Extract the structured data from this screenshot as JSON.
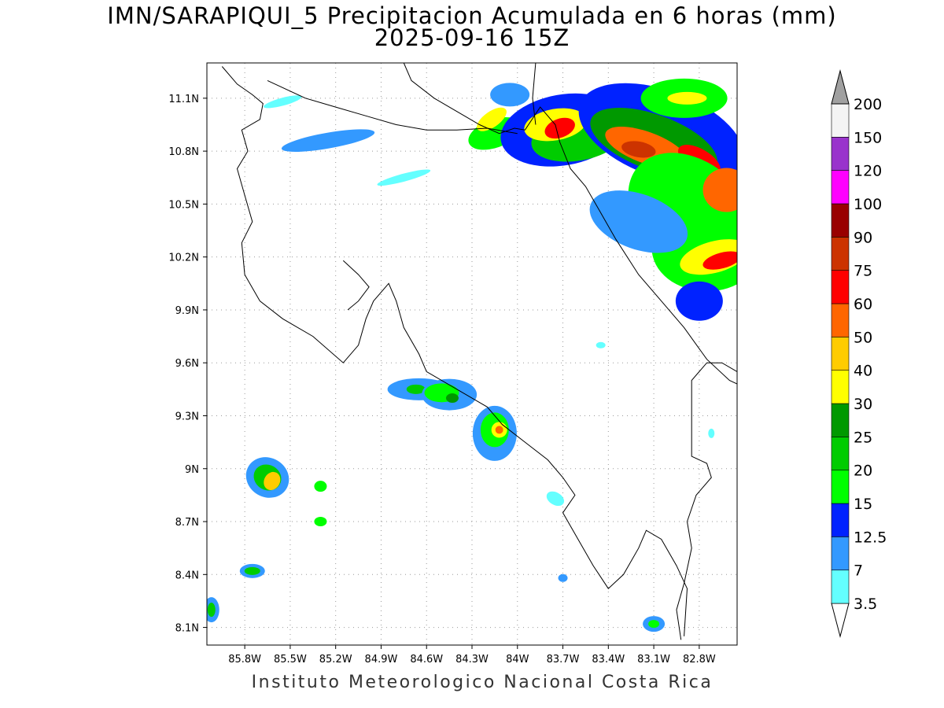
{
  "title_line1": "IMN/SARAPIQUI_5 Precipitacion Acumulada en 6 horas (mm)",
  "title_line2": "2025-09-16 15Z",
  "footer": "Instituto Meteorologico Nacional Costa Rica",
  "map": {
    "lon_range": [
      -86.05,
      -82.55
    ],
    "lat_range": [
      8.0,
      11.3
    ],
    "lon_ticks": [
      {
        "v": -85.8,
        "label": "85.8W"
      },
      {
        "v": -85.5,
        "label": "85.5W"
      },
      {
        "v": -85.2,
        "label": "85.2W"
      },
      {
        "v": -84.9,
        "label": "84.9W"
      },
      {
        "v": -84.6,
        "label": "84.6W"
      },
      {
        "v": -84.3,
        "label": "84.3W"
      },
      {
        "v": -84.0,
        "label": "84W"
      },
      {
        "v": -83.7,
        "label": "83.7W"
      },
      {
        "v": -83.4,
        "label": "83.4W"
      },
      {
        "v": -83.1,
        "label": "83.1W"
      },
      {
        "v": -82.8,
        "label": "82.8W"
      }
    ],
    "lat_ticks": [
      {
        "v": 8.1,
        "label": "8.1N"
      },
      {
        "v": 8.4,
        "label": "8.4N"
      },
      {
        "v": 8.7,
        "label": "8.7N"
      },
      {
        "v": 9.0,
        "label": "9N"
      },
      {
        "v": 9.3,
        "label": "9.3N"
      },
      {
        "v": 9.6,
        "label": "9.6N"
      },
      {
        "v": 9.9,
        "label": "9.9N"
      },
      {
        "v": 10.2,
        "label": "10.2N"
      },
      {
        "v": 10.5,
        "label": "10.5N"
      },
      {
        "v": 10.8,
        "label": "10.8N"
      },
      {
        "v": 11.1,
        "label": "11.1N"
      }
    ],
    "grid": true,
    "coastline": [
      [
        [
          -85.95,
          11.28
        ],
        [
          -85.85,
          11.18
        ],
        [
          -85.75,
          11.12
        ],
        [
          -85.68,
          11.07
        ],
        [
          -85.7,
          10.98
        ],
        [
          -85.82,
          10.92
        ],
        [
          -85.78,
          10.8
        ],
        [
          -85.85,
          10.7
        ],
        [
          -85.8,
          10.55
        ],
        [
          -85.75,
          10.4
        ],
        [
          -85.82,
          10.28
        ],
        [
          -85.8,
          10.1
        ],
        [
          -85.7,
          9.95
        ],
        [
          -85.55,
          9.85
        ],
        [
          -85.35,
          9.75
        ],
        [
          -85.15,
          9.6
        ],
        [
          -85.05,
          9.7
        ],
        [
          -85.0,
          9.85
        ],
        [
          -84.95,
          9.95
        ],
        [
          -84.85,
          10.05
        ],
        [
          -84.8,
          9.95
        ],
        [
          -84.75,
          9.8
        ],
        [
          -84.65,
          9.65
        ],
        [
          -84.6,
          9.55
        ],
        [
          -84.4,
          9.45
        ],
        [
          -84.2,
          9.35
        ],
        [
          -84.1,
          9.25
        ],
        [
          -83.95,
          9.15
        ],
        [
          -83.8,
          9.05
        ],
        [
          -83.7,
          8.95
        ],
        [
          -83.62,
          8.85
        ],
        [
          -83.7,
          8.75
        ],
        [
          -83.6,
          8.6
        ],
        [
          -83.5,
          8.45
        ],
        [
          -83.4,
          8.32
        ],
        [
          -83.3,
          8.4
        ],
        [
          -83.2,
          8.55
        ],
        [
          -83.15,
          8.65
        ],
        [
          -83.05,
          8.6
        ],
        [
          -82.95,
          8.45
        ],
        [
          -82.88,
          8.32
        ],
        [
          -82.9,
          8.05
        ]
      ],
      [
        [
          -85.15,
          10.18
        ],
        [
          -85.05,
          10.1
        ],
        [
          -84.98,
          10.03
        ],
        [
          -85.05,
          9.95
        ],
        [
          -85.12,
          9.9
        ]
      ],
      [
        [
          -84.75,
          11.3
        ],
        [
          -84.7,
          11.2
        ],
        [
          -84.55,
          11.1
        ],
        [
          -84.45,
          11.05
        ],
        [
          -84.35,
          11.0
        ],
        [
          -84.25,
          10.95
        ],
        [
          -84.12,
          10.9
        ],
        [
          -84.02,
          10.93
        ],
        [
          -83.95,
          10.92
        ],
        [
          -83.85,
          11.05
        ],
        [
          -83.75,
          10.95
        ],
        [
          -83.72,
          10.85
        ],
        [
          -83.65,
          10.7
        ],
        [
          -83.55,
          10.6
        ],
        [
          -83.45,
          10.45
        ],
        [
          -83.35,
          10.3
        ],
        [
          -83.2,
          10.1
        ],
        [
          -83.05,
          9.95
        ],
        [
          -82.9,
          9.8
        ],
        [
          -82.75,
          9.62
        ],
        [
          -82.6,
          9.5
        ],
        [
          -82.55,
          9.48
        ]
      ]
    ],
    "borders": [
      [
        [
          -85.65,
          11.2
        ],
        [
          -85.4,
          11.1
        ],
        [
          -85.2,
          11.05
        ],
        [
          -85.0,
          11.0
        ],
        [
          -84.8,
          10.95
        ],
        [
          -84.6,
          10.92
        ],
        [
          -84.4,
          10.92
        ],
        [
          -84.2,
          10.93
        ],
        [
          -84.0,
          10.9
        ]
      ],
      [
        [
          -83.88,
          11.3
        ],
        [
          -83.9,
          11.1
        ],
        [
          -83.88,
          10.95
        ]
      ],
      [
        [
          -82.55,
          9.55
        ],
        [
          -82.65,
          9.6
        ],
        [
          -82.75,
          9.6
        ],
        [
          -82.85,
          9.5
        ],
        [
          -82.85,
          9.3
        ],
        [
          -82.85,
          9.07
        ],
        [
          -82.75,
          9.03
        ],
        [
          -82.72,
          8.95
        ],
        [
          -82.82,
          8.85
        ],
        [
          -82.88,
          8.7
        ],
        [
          -82.85,
          8.55
        ],
        [
          -82.9,
          8.35
        ],
        [
          -82.95,
          8.2
        ],
        [
          -82.92,
          8.03
        ]
      ]
    ],
    "precip_cells": [
      {
        "lon": -84.15,
        "lat": 10.9,
        "rx": 35,
        "ry": 18,
        "rot": -20,
        "level": 3
      },
      {
        "lon": -84.17,
        "lat": 10.98,
        "rx": 22,
        "ry": 10,
        "rot": -35,
        "level": 6
      },
      {
        "lon": -84.05,
        "lat": 11.12,
        "rx": 25,
        "ry": 15,
        "rot": 0,
        "level": 1
      },
      {
        "lon": -83.7,
        "lat": 10.92,
        "rx": 80,
        "ry": 45,
        "rot": -10,
        "level": 2
      },
      {
        "lon": -83.6,
        "lat": 10.88,
        "rx": 60,
        "ry": 30,
        "rot": -10,
        "level": 4
      },
      {
        "lon": -83.75,
        "lat": 10.95,
        "rx": 40,
        "ry": 20,
        "rot": -10,
        "level": 6
      },
      {
        "lon": -83.72,
        "lat": 10.93,
        "rx": 20,
        "ry": 12,
        "rot": -20,
        "level": 9
      },
      {
        "lon": -83.05,
        "lat": 10.9,
        "rx": 110,
        "ry": 55,
        "rot": 20,
        "level": 2
      },
      {
        "lon": -83.1,
        "lat": 10.85,
        "rx": 85,
        "ry": 35,
        "rot": 20,
        "level": 5
      },
      {
        "lon": -83.15,
        "lat": 10.82,
        "rx": 55,
        "ry": 20,
        "rot": 20,
        "level": 8
      },
      {
        "lon": -83.2,
        "lat": 10.81,
        "rx": 22,
        "ry": 10,
        "rot": 10,
        "level": 10
      },
      {
        "lon": -82.8,
        "lat": 10.75,
        "rx": 30,
        "ry": 14,
        "rot": 30,
        "level": 9
      },
      {
        "lon": -82.9,
        "lat": 11.1,
        "rx": 55,
        "ry": 25,
        "rot": 0,
        "level": 3
      },
      {
        "lon": -82.88,
        "lat": 11.1,
        "rx": 25,
        "ry": 8,
        "rot": 0,
        "level": 6
      },
      {
        "lon": -82.85,
        "lat": 10.45,
        "rx": 90,
        "ry": 65,
        "rot": 40,
        "level": 3
      },
      {
        "lon": -82.75,
        "lat": 10.25,
        "rx": 70,
        "ry": 55,
        "rot": 0,
        "level": 3
      },
      {
        "lon": -82.7,
        "lat": 10.2,
        "rx": 45,
        "ry": 20,
        "rot": -15,
        "level": 6
      },
      {
        "lon": -82.65,
        "lat": 10.18,
        "rx": 25,
        "ry": 10,
        "rot": -15,
        "level": 9
      },
      {
        "lon": -82.62,
        "lat": 10.58,
        "rx": 30,
        "ry": 28,
        "rot": 0,
        "level": 8
      },
      {
        "lon": -83.2,
        "lat": 10.4,
        "rx": 65,
        "ry": 35,
        "rot": 20,
        "level": 1
      },
      {
        "lon": -82.8,
        "lat": 9.95,
        "rx": 30,
        "ry": 25,
        "rot": 0,
        "level": 2
      },
      {
        "lon": -85.25,
        "lat": 10.86,
        "rx": 60,
        "ry": 10,
        "rot": -10,
        "level": 1
      },
      {
        "lon": -85.55,
        "lat": 11.08,
        "rx": 25,
        "ry": 5,
        "rot": -15,
        "level": 0
      },
      {
        "lon": -84.75,
        "lat": 10.65,
        "rx": 35,
        "ry": 5,
        "rot": -15,
        "level": 0
      },
      {
        "lon": -84.65,
        "lat": 9.45,
        "rx": 40,
        "ry": 14,
        "rot": 0,
        "level": 1
      },
      {
        "lon": -84.67,
        "lat": 9.45,
        "rx": 12,
        "ry": 6,
        "rot": 0,
        "level": 4
      },
      {
        "lon": -84.45,
        "lat": 9.42,
        "rx": 35,
        "ry": 20,
        "rot": 0,
        "level": 1
      },
      {
        "lon": -84.5,
        "lat": 9.43,
        "rx": 22,
        "ry": 12,
        "rot": 0,
        "level": 3
      },
      {
        "lon": -84.43,
        "lat": 9.4,
        "rx": 8,
        "ry": 6,
        "rot": 0,
        "level": 5
      },
      {
        "lon": -84.15,
        "lat": 9.2,
        "rx": 28,
        "ry": 35,
        "rot": 0,
        "level": 1
      },
      {
        "lon": -84.15,
        "lat": 9.22,
        "rx": 18,
        "ry": 22,
        "rot": 0,
        "level": 3
      },
      {
        "lon": -84.12,
        "lat": 9.22,
        "rx": 10,
        "ry": 10,
        "rot": 0,
        "level": 6
      },
      {
        "lon": -84.12,
        "lat": 9.22,
        "rx": 5,
        "ry": 5,
        "rot": 0,
        "level": 8
      },
      {
        "lon": -85.65,
        "lat": 8.95,
        "rx": 28,
        "ry": 25,
        "rot": 30,
        "level": 1
      },
      {
        "lon": -85.65,
        "lat": 8.95,
        "rx": 18,
        "ry": 16,
        "rot": 30,
        "level": 4
      },
      {
        "lon": -85.62,
        "lat": 8.93,
        "rx": 10,
        "ry": 12,
        "rot": 30,
        "level": 7
      },
      {
        "lon": -85.3,
        "lat": 8.9,
        "rx": 8,
        "ry": 7,
        "rot": 0,
        "level": 3
      },
      {
        "lon": -85.3,
        "lat": 8.7,
        "rx": 8,
        "ry": 6,
        "rot": 0,
        "level": 3
      },
      {
        "lon": -85.75,
        "lat": 8.42,
        "rx": 16,
        "ry": 9,
        "rot": 0,
        "level": 1
      },
      {
        "lon": -85.75,
        "lat": 8.42,
        "rx": 10,
        "ry": 5,
        "rot": 0,
        "level": 4
      },
      {
        "lon": -86.02,
        "lat": 8.2,
        "rx": 10,
        "ry": 16,
        "rot": 0,
        "level": 1
      },
      {
        "lon": -86.02,
        "lat": 8.2,
        "rx": 5,
        "ry": 9,
        "rot": 0,
        "level": 4
      },
      {
        "lon": -83.1,
        "lat": 8.12,
        "rx": 14,
        "ry": 10,
        "rot": 0,
        "level": 1
      },
      {
        "lon": -83.1,
        "lat": 8.12,
        "rx": 7,
        "ry": 5,
        "rot": 0,
        "level": 3
      },
      {
        "lon": -83.75,
        "lat": 8.83,
        "rx": 12,
        "ry": 8,
        "rot": 30,
        "level": 0
      },
      {
        "lon": -83.7,
        "lat": 8.38,
        "rx": 6,
        "ry": 5,
        "rot": 0,
        "level": 1
      },
      {
        "lon": -82.72,
        "lat": 9.2,
        "rx": 4,
        "ry": 6,
        "rot": 0,
        "level": 0
      },
      {
        "lon": -83.45,
        "lat": 9.7,
        "rx": 6,
        "ry": 4,
        "rot": 0,
        "level": 0
      }
    ]
  },
  "colorbar": {
    "levels": [
      "3.5",
      "7",
      "12.5",
      "15",
      "20",
      "25",
      "30",
      "40",
      "50",
      "60",
      "75",
      "90",
      "100",
      "120",
      "150",
      "200"
    ],
    "colors": [
      "#64ffff",
      "#3399ff",
      "#0022ff",
      "#00ff00",
      "#00cc00",
      "#009900",
      "#ffff00",
      "#ffcc00",
      "#ff6600",
      "#ff0000",
      "#cc3300",
      "#990000",
      "#ff00ff",
      "#9933cc",
      "#f4f4f4",
      "#a0a0a0"
    ]
  }
}
